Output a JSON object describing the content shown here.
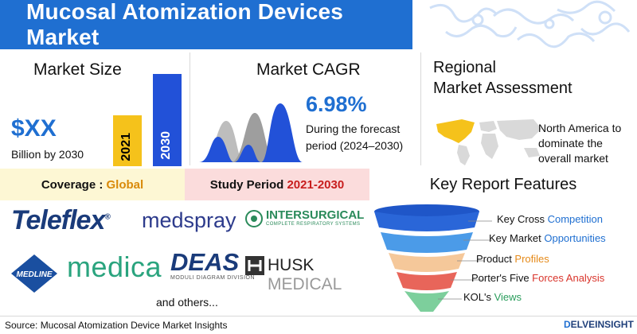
{
  "header": {
    "title": "Mucosal Atomization Devices Market"
  },
  "market_size": {
    "title": "Market Size",
    "value": "$XX",
    "subtitle": "Billion by 2030",
    "bars": [
      {
        "label": "2021",
        "color": "#f5c21b"
      },
      {
        "label": "2030",
        "color": "#2251d8"
      }
    ]
  },
  "market_cagr": {
    "title": "Market CAGR",
    "value": "6.98%",
    "subtitle": "During the forecast period (2024–2030)"
  },
  "regional": {
    "title_line1": "Regional",
    "title_line2": "Market Assessment",
    "note": "North America to dominate the overall market"
  },
  "coverage": {
    "label": "Coverage : ",
    "value": "Global"
  },
  "study_period": {
    "label": "Study Period ",
    "value": "2021-2030"
  },
  "key_report": {
    "title": "Key Report Features",
    "features": [
      {
        "plain": "Key Cross ",
        "accent": "Competition",
        "accent_color": "#1f6fd1"
      },
      {
        "plain": "Key Market ",
        "accent": "Opportunities",
        "accent_color": "#1f6fd1"
      },
      {
        "plain": "Product ",
        "accent": "Profiles",
        "accent_color": "#e58a1a"
      },
      {
        "plain": "Porter's Five ",
        "accent": "Forces Analysis",
        "accent_color": "#d9342b"
      },
      {
        "plain": "KOL's ",
        "accent": "Views",
        "accent_color": "#2a9d5c"
      }
    ]
  },
  "companies": {
    "teleflex": "Teleflex",
    "medspray": "medspray",
    "intersurgical": "INTERSURGICAL",
    "intersurgical_sub": "COMPLETE RESPIRATORY SYSTEMS",
    "medline": "MEDLINE",
    "medica": "medica",
    "deas": "DEAS",
    "deas_sub": "MODULI DIAGRAM DIVISION",
    "husk_dark": "HUSK",
    "husk_light": " MEDICAL",
    "others": "and others..."
  },
  "footer": {
    "source": "Source: Mucosal Atomization Device Market Insights",
    "brand_d": "D",
    "brand_rest": "ELVEINSIGHT"
  },
  "colors": {
    "brand_blue": "#1f6fd1",
    "coverage_bg": "#fdf7d4",
    "study_bg": "#fbdcdc"
  }
}
